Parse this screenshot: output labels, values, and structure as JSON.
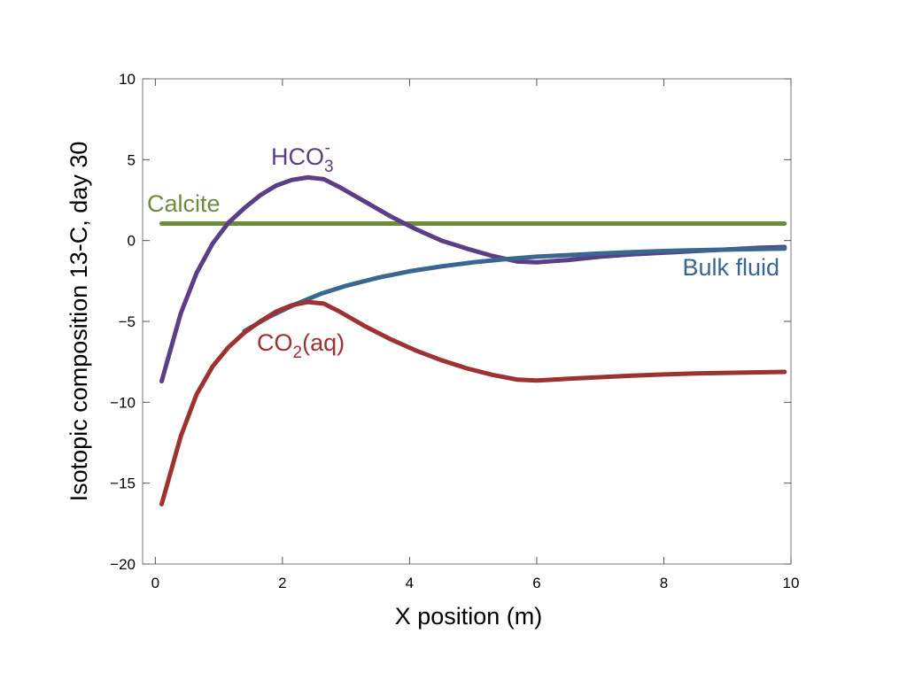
{
  "chart_data": {
    "type": "line",
    "xlabel": "X position (m)",
    "ylabel": "Isotopic composition 13-C, day 30",
    "xlim": [
      -0.2,
      10
    ],
    "ylim": [
      -20,
      10
    ],
    "xticks": [
      0,
      2,
      4,
      6,
      8,
      10
    ],
    "yticks": [
      10,
      5,
      0,
      -5,
      -10,
      -15,
      -20
    ],
    "ytick_labels": [
      "10",
      "5",
      "0",
      "−5",
      "−10",
      "−15",
      "−20"
    ],
    "grid": false,
    "series": [
      {
        "name": "Calcite",
        "color": "#6e8b3d",
        "x": [
          0.1,
          9.9
        ],
        "y": [
          1.05,
          1.05
        ]
      },
      {
        "name": "HCO3-",
        "color": "#5b3f86",
        "x": [
          0.1,
          0.4,
          0.65,
          0.9,
          1.15,
          1.4,
          1.65,
          1.9,
          2.15,
          2.4,
          2.65,
          2.9,
          3.3,
          3.7,
          4.1,
          4.5,
          4.9,
          5.3,
          5.7,
          6.0,
          6.5,
          7.0,
          7.5,
          8.0,
          8.5,
          9.0,
          9.5,
          9.9
        ],
        "y": [
          -8.7,
          -4.5,
          -2.0,
          -0.2,
          1.1,
          2.0,
          2.8,
          3.4,
          3.75,
          3.9,
          3.8,
          3.3,
          2.4,
          1.5,
          0.7,
          0.0,
          -0.5,
          -0.95,
          -1.3,
          -1.35,
          -1.2,
          -1.0,
          -0.85,
          -0.75,
          -0.65,
          -0.55,
          -0.45,
          -0.4
        ]
      },
      {
        "name": "Bulk fluid",
        "color": "#3a6690",
        "x": [
          1.4,
          1.8,
          2.2,
          2.6,
          3.0,
          3.5,
          4.0,
          4.5,
          5.0,
          5.5,
          6.0,
          6.5,
          7.0,
          7.5,
          8.0,
          8.5,
          9.0,
          9.5,
          9.9
        ],
        "y": [
          -5.6,
          -4.7,
          -3.95,
          -3.3,
          -2.8,
          -2.3,
          -1.9,
          -1.6,
          -1.35,
          -1.15,
          -1.0,
          -0.9,
          -0.8,
          -0.72,
          -0.65,
          -0.6,
          -0.56,
          -0.53,
          -0.5
        ]
      },
      {
        "name": "CO2(aq)",
        "color": "#9c3232",
        "x": [
          0.1,
          0.4,
          0.65,
          0.9,
          1.15,
          1.4,
          1.65,
          1.9,
          2.15,
          2.4,
          2.65,
          2.9,
          3.3,
          3.7,
          4.1,
          4.5,
          4.9,
          5.3,
          5.7,
          6.0,
          6.5,
          7.0,
          7.5,
          8.0,
          8.5,
          9.0,
          9.5,
          9.9
        ],
        "y": [
          -16.3,
          -12.1,
          -9.5,
          -7.8,
          -6.6,
          -5.7,
          -5.0,
          -4.4,
          -4.0,
          -3.8,
          -3.9,
          -4.4,
          -5.3,
          -6.1,
          -6.8,
          -7.4,
          -7.9,
          -8.3,
          -8.6,
          -8.65,
          -8.55,
          -8.45,
          -8.35,
          -8.28,
          -8.22,
          -8.18,
          -8.15,
          -8.12
        ]
      }
    ],
    "annotations": {
      "calcite": {
        "text": "Calcite",
        "color": "#6e8b3d"
      },
      "hco3": {
        "base": "HCO",
        "sub": "3",
        "sup": "-",
        "color": "#5b3f86"
      },
      "bulk": {
        "text": "Bulk fluid",
        "color": "#3a6690"
      },
      "co2": {
        "base": "CO",
        "sub": "2",
        "rest": "(aq)",
        "color": "#9c3232"
      }
    }
  }
}
